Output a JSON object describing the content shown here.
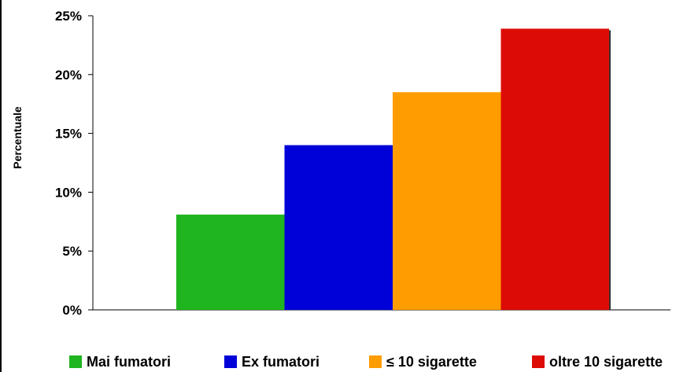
{
  "chart_data": {
    "type": "bar",
    "categories": [
      "Mai fumatori",
      "Ex fumatori",
      "≤ 10 sigarette",
      "oltre 10 sigarette"
    ],
    "values": [
      8.1,
      14.0,
      18.5,
      23.9
    ],
    "colors": [
      "#1fb51f",
      "#0000d8",
      "#ff9c00",
      "#dd0b06"
    ],
    "ylabel": "Percentuale",
    "ylim": [
      0,
      25
    ],
    "yticks": [
      "0%",
      "5%",
      "10%",
      "15%",
      "20%",
      "25%"
    ],
    "grid": false,
    "legend_position": "bottom"
  }
}
